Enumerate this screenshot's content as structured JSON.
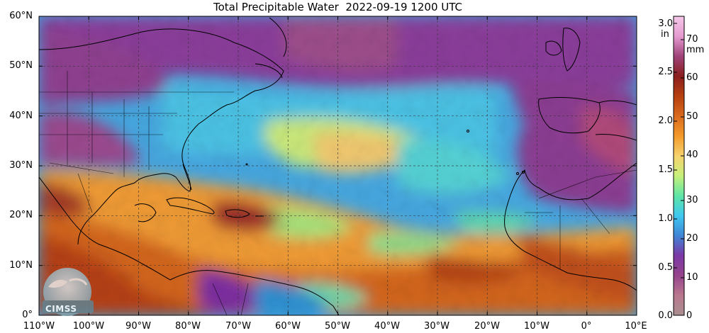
{
  "title": "Total Precipitable Water  2022-09-19 1200 UTC",
  "map": {
    "lat_labels": [
      "60°N",
      "50°N",
      "40°N",
      "30°N",
      "20°N",
      "10°N",
      "0°"
    ],
    "lon_labels": [
      "110°W",
      "100°W",
      "90°W",
      "80°W",
      "70°W",
      "60°W",
      "50°W",
      "40°W",
      "30°W",
      "20°W",
      "10°W",
      "0°",
      "10°E"
    ],
    "extent": {
      "lon_min": -110,
      "lon_max": 10,
      "lat_min": 0,
      "lat_max": 60
    },
    "gridlines": true,
    "colorbar_gradient": [
      "#a98f8f",
      "#b9778f",
      "#96448c",
      "#7b38a6",
      "#3f86d6",
      "#3fc8f0",
      "#5fe6a6",
      "#c8f07a",
      "#f6d26e",
      "#f39a2a",
      "#d9691e",
      "#b64010",
      "#8a1e1e",
      "#a0447a",
      "#e59ad0",
      "#f6c8ea"
    ]
  },
  "colorbar": {
    "inch_labels": [
      "3.0",
      "2.5",
      "2.0",
      "1.5",
      "1.0",
      "0.5",
      "0.0"
    ],
    "inch_unit": "in",
    "mm_labels": [
      "70",
      "60",
      "50",
      "40",
      "30",
      "20",
      "10",
      "0"
    ],
    "mm_unit": "mm"
  },
  "logo": {
    "text": "CIMSS"
  }
}
